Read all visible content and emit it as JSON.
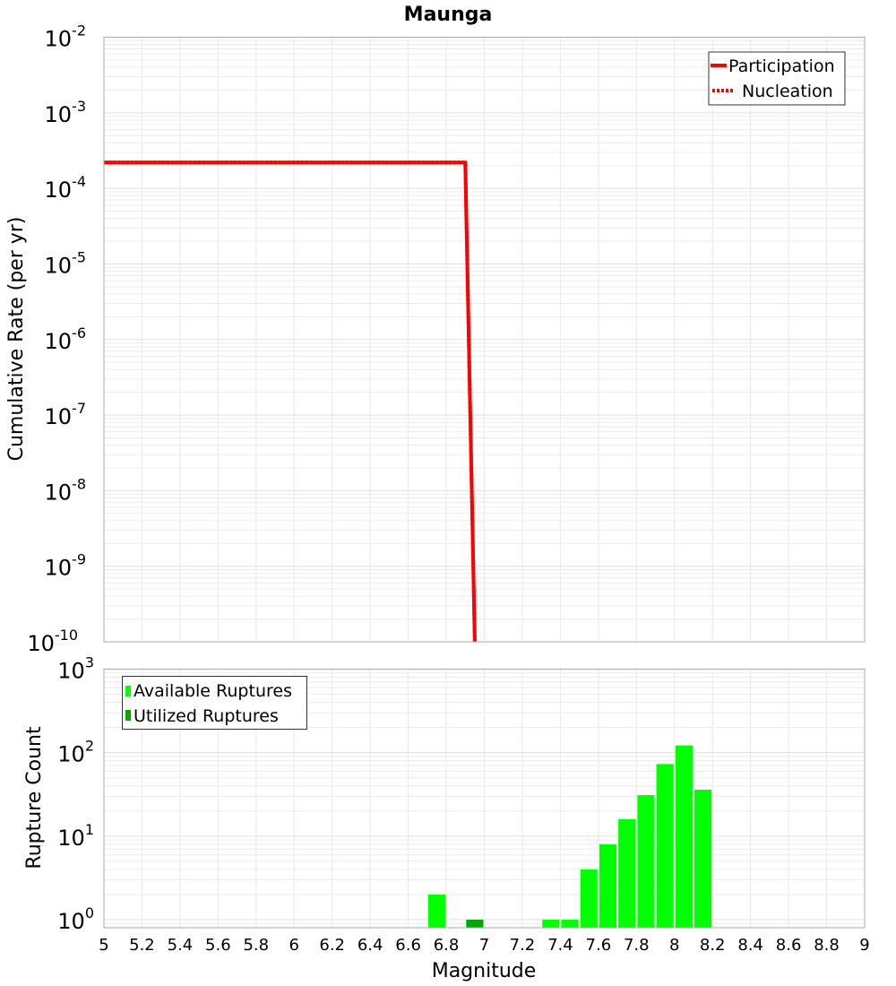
{
  "chart_data": [
    {
      "type": "line",
      "title": "Maunga",
      "xlabel": "Magnitude",
      "ylabel": "Cumulative Rate (per yr)",
      "xlim": [
        5,
        9
      ],
      "ylim": [
        1e-10,
        0.01
      ],
      "yscale": "log",
      "grid": true,
      "legend_position": "top-right",
      "series": [
        {
          "name": "Participation",
          "style": "solid",
          "color": "#ff0000",
          "x": [
            5,
            6.9,
            6.95
          ],
          "y": [
            0.00022,
            0.00022,
            1e-10
          ]
        },
        {
          "name": "Nucleation",
          "style": "dotted",
          "color": "#ff0000",
          "x": [
            5,
            6.9,
            6.95
          ],
          "y": [
            0.00022,
            0.00022,
            1e-10
          ]
        }
      ],
      "ytick_exponents": [
        -10,
        -9,
        -8,
        -7,
        -6,
        -5,
        -4,
        -3,
        -2
      ]
    },
    {
      "type": "bar",
      "xlabel": "Magnitude",
      "ylabel": "Rupture Count",
      "xlim": [
        5,
        9
      ],
      "ylim": [
        0.8,
        1000
      ],
      "yscale": "log",
      "grid": true,
      "legend_position": "top-left",
      "bar_width": 0.09,
      "series": [
        {
          "name": "Available Ruptures",
          "color": "#00ff00",
          "x": [
            6.75,
            7.35,
            7.45,
            7.55,
            7.65,
            7.75,
            7.85,
            7.95,
            8.05,
            8.15
          ],
          "values": [
            2,
            1,
            1,
            4,
            8,
            16,
            31,
            73,
            122,
            36
          ]
        },
        {
          "name": "Utilized Ruptures",
          "color": "#00aa00",
          "x": [
            6.95
          ],
          "values": [
            1
          ]
        }
      ],
      "ytick_exponents": [
        0,
        1,
        2,
        3
      ],
      "xticks": [
        "5",
        "5.2",
        "5.4",
        "5.6",
        "5.8",
        "6",
        "6.2",
        "6.4",
        "6.6",
        "6.8",
        "7",
        "7.2",
        "7.4",
        "7.6",
        "7.8",
        "8",
        "8.2",
        "8.4",
        "8.6",
        "8.8",
        "9"
      ]
    }
  ]
}
